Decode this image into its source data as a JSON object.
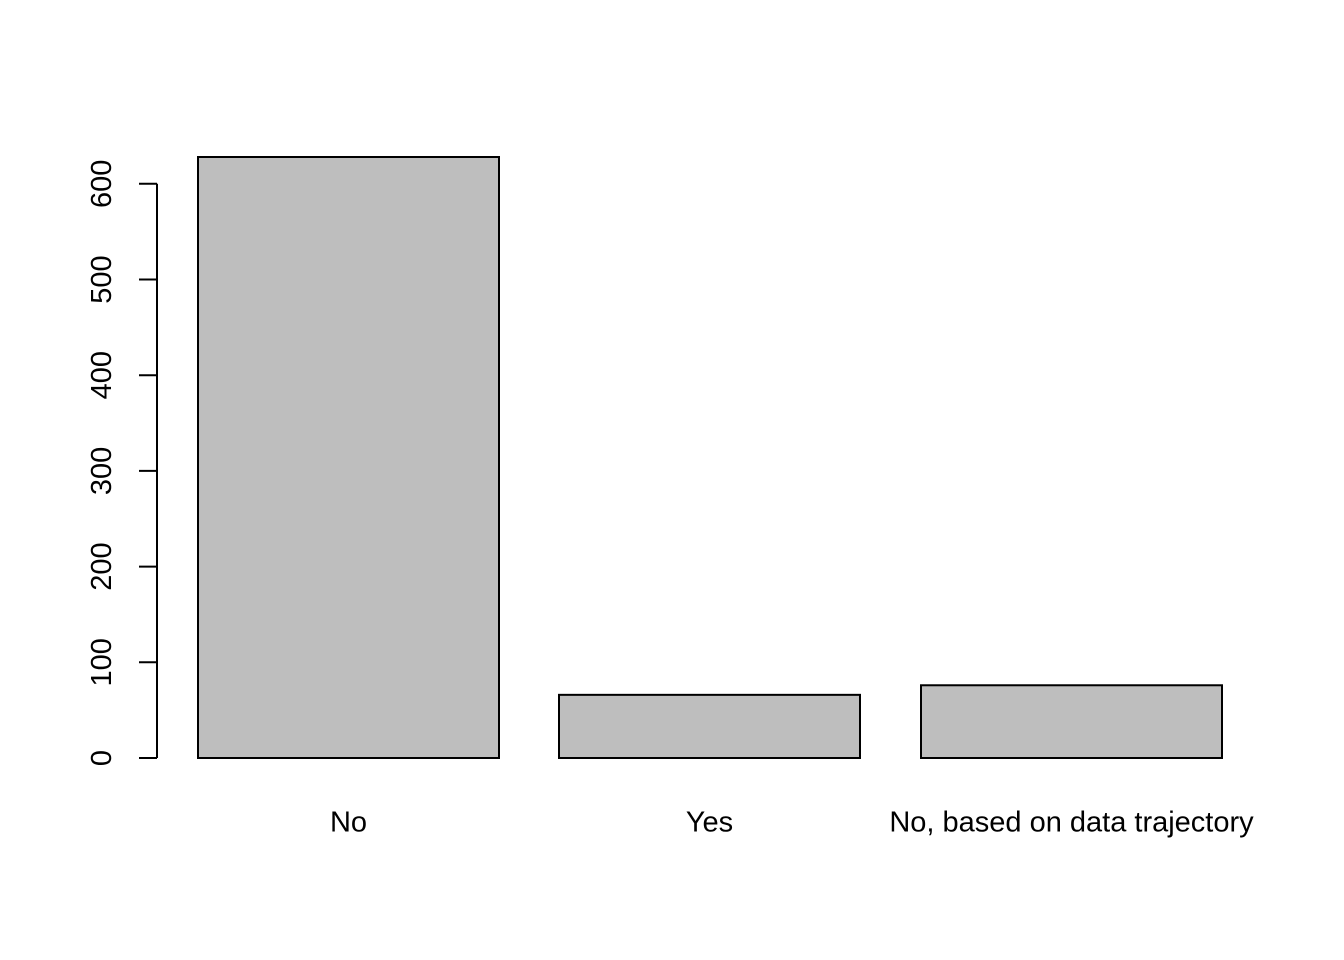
{
  "chart_data": {
    "type": "bar",
    "title": "",
    "xlabel": "",
    "ylabel": "",
    "categories": [
      "No",
      "Yes",
      "No, based on data trajectory"
    ],
    "values": [
      628,
      66,
      76
    ],
    "ylim": [
      0,
      600
    ],
    "yticks": [
      0,
      100,
      200,
      300,
      400,
      500,
      600
    ],
    "grid": false,
    "legend": "none",
    "bar_color": "#bebebe",
    "bar_border_color": "#000000"
  }
}
